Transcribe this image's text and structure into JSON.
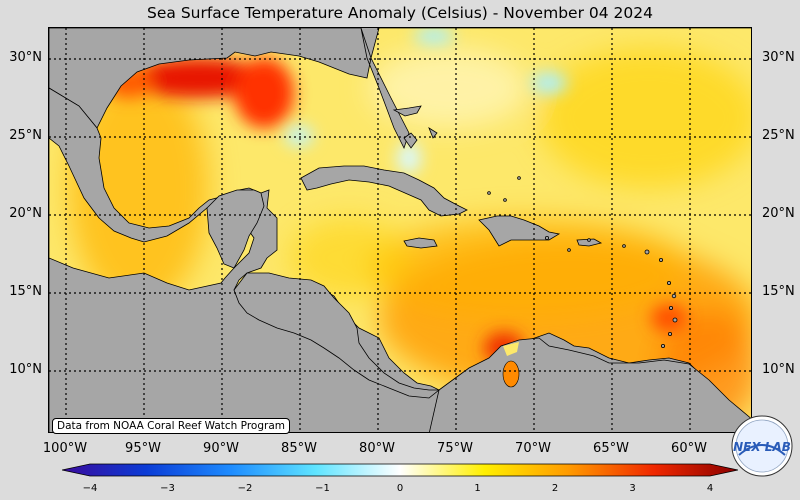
{
  "title": "Sea Surface Temperature Anomaly (Celsius) - November 04 2024",
  "lat_labels": [
    "30°N",
    "25°N",
    "20°N",
    "15°N",
    "10°N"
  ],
  "lon_labels": [
    "100°W",
    "95°W",
    "90°W",
    "85°W",
    "80°W",
    "75°W",
    "70°W",
    "65°W",
    "60°W"
  ],
  "credit": "Data from NOAA Coral Reef Watch Program",
  "colorbar": {
    "ticks": [
      "−4",
      "−3",
      "−2",
      "−1",
      "0",
      "1",
      "2",
      "3",
      "4"
    ],
    "range": [
      -4,
      4
    ],
    "colors": [
      "#3a0a9c",
      "#0b3cd6",
      "#1e8cff",
      "#5fe4ff",
      "#ffffff",
      "#ffef00",
      "#ff9a00",
      "#f02800",
      "#8a0000"
    ]
  },
  "logo_text": "NEX LAB",
  "colors": {
    "land": "#a6a6a6",
    "background": "#dcdcdc",
    "ocean_base": "#fde86a"
  }
}
